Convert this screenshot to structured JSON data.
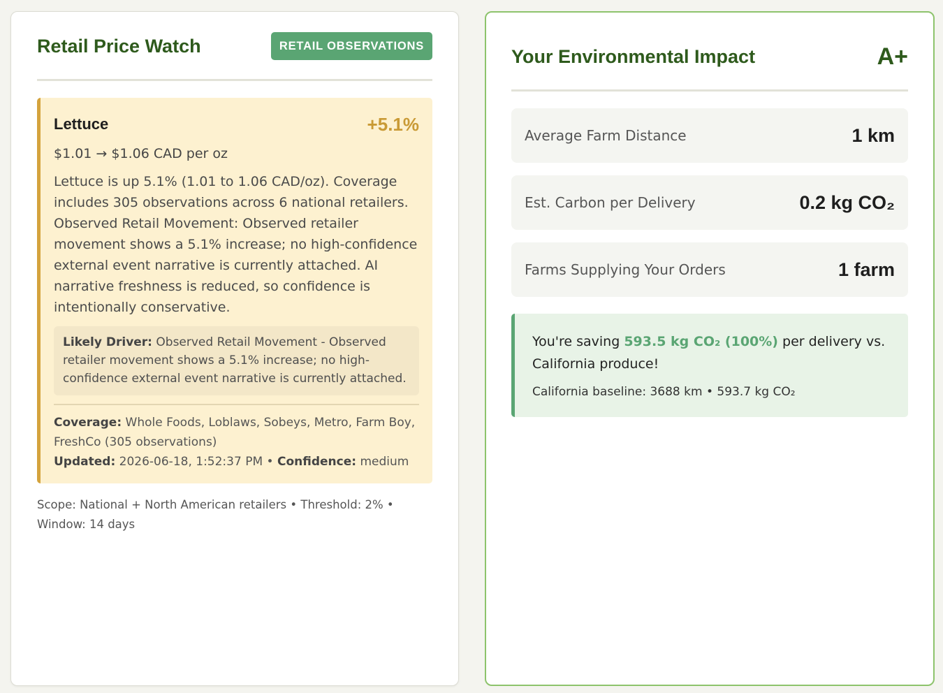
{
  "retail": {
    "title": "Retail Price Watch",
    "badge": "RETAIL OBSERVATIONS",
    "alert": {
      "item": "Lettuce",
      "change": "+5.1%",
      "price_line": "$1.01 → $1.06 CAD per oz",
      "summary": "Lettuce is up 5.1% (1.01 to 1.06 CAD/oz). Coverage includes 305 observations across 6 national retailers. Observed Retail Movement: Observed retailer movement shows a 5.1% increase; no high-confidence external event narrative is currently attached. AI narrative freshness is reduced, so confidence is intentionally conservative.",
      "driver_label": "Likely Driver:",
      "driver_text": "Observed Retail Movement - Observed retailer movement shows a 5.1% increase; no high-confidence external event narrative is currently attached.",
      "coverage_label": "Coverage:",
      "coverage_text": "Whole Foods, Loblaws, Sobeys, Metro, Farm Boy, FreshCo (305 observations)",
      "updated_label": "Updated:",
      "updated_text": "2026-06-18, 1:52:37 PM",
      "separator": "•",
      "confidence_label": "Confidence:",
      "confidence_text": "medium"
    },
    "footnote": "Scope: National + North American retailers • Threshold: 2% • Window: 14 days"
  },
  "impact": {
    "title": "Your Environmental Impact",
    "grade": "A+",
    "stats": [
      {
        "label": "Average Farm Distance",
        "value": "1 km"
      },
      {
        "label": "Est. Carbon per Delivery",
        "value": "0.2 kg CO₂"
      },
      {
        "label": "Farms Supplying Your Orders",
        "value": "1 farm"
      }
    ],
    "saving": {
      "prefix": "You're saving",
      "highlight": "593.5 kg CO₂ (100%)",
      "suffix": "per delivery vs. California produce!",
      "baseline": "California baseline: 3688 km • 593.7 kg CO₂"
    }
  },
  "colors": {
    "brand_green": "#2e5a1c",
    "badge_green": "#5aa573",
    "alert_amber": "#d4a33d",
    "change_amber": "#c99a35",
    "alert_bg": "#fdf1d0",
    "saving_bg": "#e8f3e7",
    "card_border_active": "#8dc36c"
  }
}
